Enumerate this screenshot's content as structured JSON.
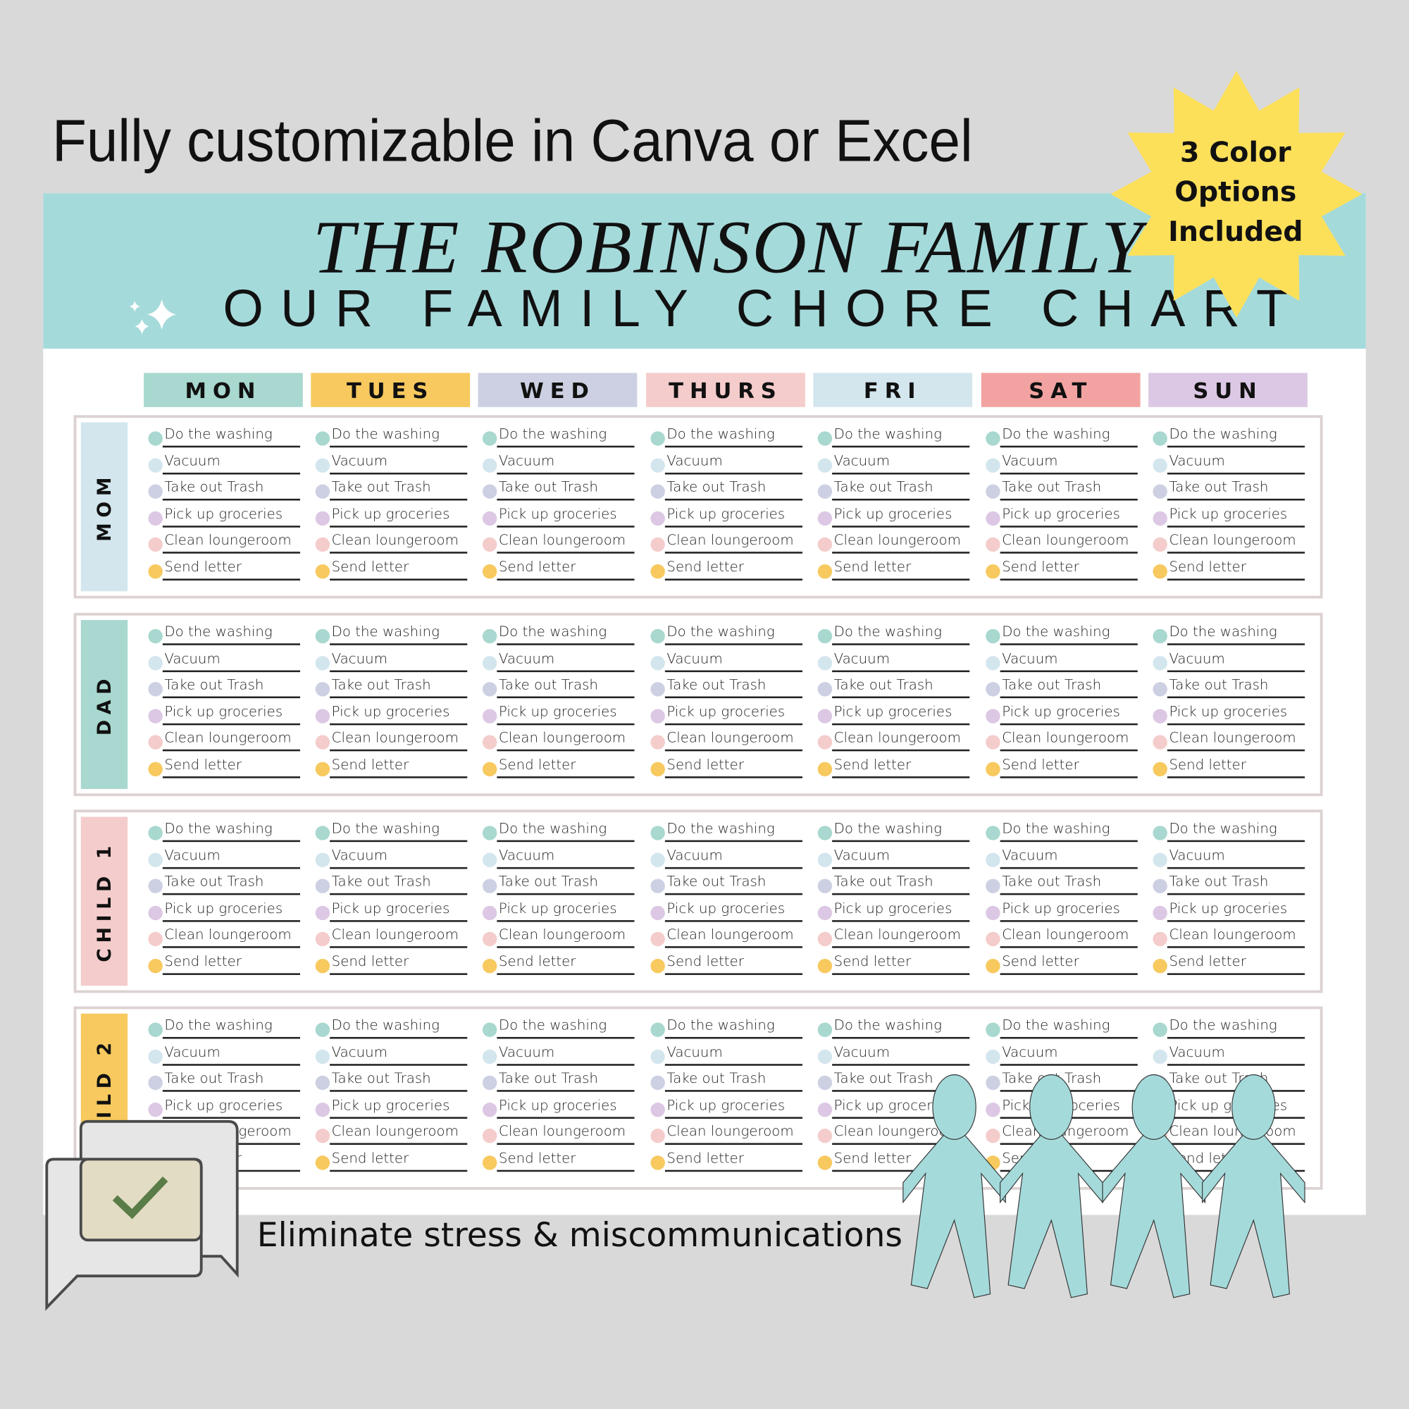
{
  "headline": "Fully customizable in Canva or Excel",
  "badge": {
    "text": "3 Color Options Included",
    "color": "#fde05a"
  },
  "chart": {
    "script_title": "THE ROBINSON FAMILY",
    "title": "OUR FAMILY CHORE CHART",
    "banner_color": "#a5dadb",
    "days": [
      {
        "label": "MON",
        "color": "#a8d8cf"
      },
      {
        "label": "TUES",
        "color": "#f7c95e"
      },
      {
        "label": "WED",
        "color": "#ccd0e2"
      },
      {
        "label": "THURS",
        "color": "#f4cccb"
      },
      {
        "label": "FRI",
        "color": "#d3e6ee"
      },
      {
        "label": "SAT",
        "color": "#f2a3a1"
      },
      {
        "label": "SUN",
        "color": "#dcc8e4"
      }
    ],
    "people": [
      {
        "label": "MOM",
        "color": "#d3e6ee"
      },
      {
        "label": "DAD",
        "color": "#a8d8cf"
      },
      {
        "label": "CHILD 1",
        "color": "#f4cccb"
      },
      {
        "label": "CHILD 2",
        "color": "#f7c95e"
      }
    ],
    "chores": [
      {
        "label": "Do the washing",
        "color": "#a8d8cf"
      },
      {
        "label": "Vacuum",
        "color": "#d3e6ee"
      },
      {
        "label": "Take out Trash",
        "color": "#ccd0e2"
      },
      {
        "label": "Pick up groceries",
        "color": "#dcc8e4"
      },
      {
        "label": "Clean loungeroom",
        "color": "#f4cccb"
      },
      {
        "label": "Send letter",
        "color": "#f7c95e"
      }
    ]
  },
  "tagline": "Eliminate stress & miscommunications",
  "icons": [
    "sparkles-icon",
    "chat-checkmark-icon",
    "paper-people-icon",
    "starburst-badge"
  ]
}
